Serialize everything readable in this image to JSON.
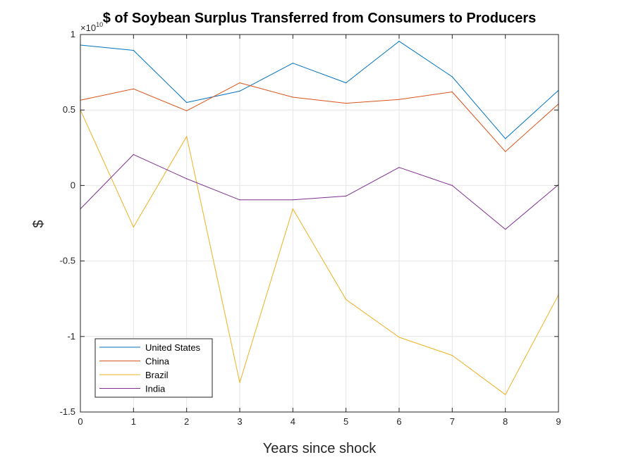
{
  "chart_data": {
    "type": "line",
    "title": "$  of Soybean Surplus Transferred from Consumers to Producers",
    "xlabel": "Years since shock",
    "ylabel": "$",
    "exponent_label": "×10",
    "exponent_power": "10",
    "x": [
      0,
      1,
      2,
      3,
      4,
      5,
      6,
      7,
      8,
      9
    ],
    "xlim": [
      0,
      9
    ],
    "ylim": [
      -1.5,
      1
    ],
    "y_scale_factor": 10000000000,
    "xticks": [
      "0",
      "1",
      "2",
      "3",
      "4",
      "5",
      "6",
      "7",
      "8",
      "9"
    ],
    "yticks": [
      {
        "value": 1,
        "label": "1"
      },
      {
        "value": 0.5,
        "label": "0.5"
      },
      {
        "value": 0,
        "label": "0"
      },
      {
        "value": -0.5,
        "label": "-0.5"
      },
      {
        "value": -1,
        "label": "-1"
      },
      {
        "value": -1.5,
        "label": "-1.5"
      }
    ],
    "grid": true,
    "legend_position": "bottom-left",
    "series": [
      {
        "name": "United States",
        "color": "#0072BD",
        "values": [
          0.93,
          0.895,
          0.55,
          0.625,
          0.81,
          0.68,
          0.955,
          0.72,
          0.31,
          0.63
        ]
      },
      {
        "name": "China",
        "color": "#D95319",
        "values": [
          0.565,
          0.64,
          0.495,
          0.68,
          0.585,
          0.545,
          0.57,
          0.62,
          0.225,
          0.54
        ]
      },
      {
        "name": "Brazil",
        "color": "#EDB120",
        "values": [
          0.5,
          -0.275,
          0.325,
          -1.305,
          -0.155,
          -0.755,
          -1.005,
          -1.125,
          -1.385,
          -0.725
        ]
      },
      {
        "name": "India",
        "color": "#7E2F8E",
        "values": [
          -0.155,
          0.205,
          0.045,
          -0.095,
          -0.095,
          -0.07,
          0.12,
          0.0,
          -0.29,
          0.005
        ]
      }
    ]
  }
}
